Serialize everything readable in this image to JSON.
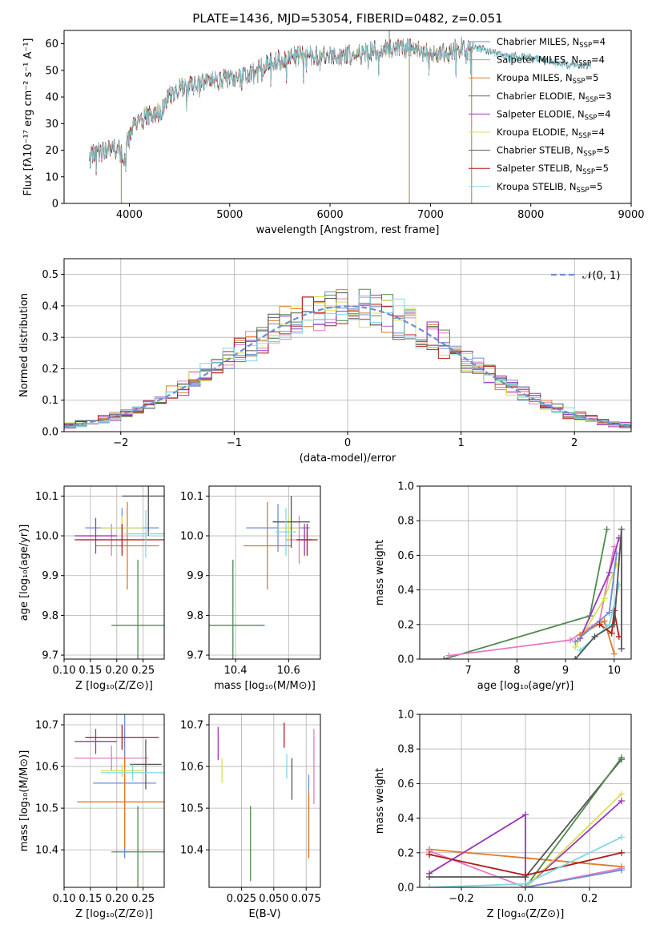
{
  "colors": {
    "Chabrier MILES": "#6b8ed6",
    "Salpeter MILES": "#e57ac0",
    "Kroupa MILES": "#e07b27",
    "Chabrier ELODIE": "#4f8a4f",
    "Salpeter ELODIE": "#9a36b8",
    "Kroupa ELODIE": "#d4e157",
    "Chabrier STELIB": "#555555",
    "Salpeter STELIB": "#b31b1b",
    "Kroupa STELIB": "#7fd9e3"
  },
  "chart_data": [
    {
      "id": "spectrum",
      "type": "line",
      "title": "PLATE=1436, MJD=53054, FIBERID=0482, z=0.051",
      "xlabel": "wavelength [Angstrom, rest frame]",
      "ylabel": "Flux [fλ10⁻¹⁷ erg cm⁻² s⁻¹ A⁻¹]",
      "xlim": [
        3350,
        9000
      ],
      "ylim": [
        0,
        65
      ],
      "xticks": [
        "4000",
        "5000",
        "6000",
        "7000",
        "8000",
        "9000"
      ],
      "yticks": [
        "0",
        "10",
        "20",
        "30",
        "40",
        "50",
        "60"
      ],
      "legend_position": "top-right",
      "legend": [
        "Chabrier MILES, N_SSP=4",
        "Salpeter MILES, N_SSP=4",
        "Kroupa MILES, N_SSP=5",
        "Chabrier ELODIE, N_SSP=3",
        "Salpeter ELODIE, N_SSP=4",
        "Kroupa ELODIE, N_SSP=4",
        "Chabrier STELIB, N_SSP=5",
        "Salpeter STELIB, N_SSP=5",
        "Kroupa STELIB, N_SSP=5"
      ],
      "series_names": [
        "Chabrier MILES",
        "Salpeter MILES",
        "Kroupa MILES",
        "Chabrier ELODIE",
        "Salpeter ELODIE",
        "Kroupa ELODIE",
        "Chabrier STELIB",
        "Salpeter STELIB",
        "Kroupa STELIB"
      ],
      "continuum": [
        [
          3600,
          18
        ],
        [
          3700,
          19
        ],
        [
          3800,
          21
        ],
        [
          3900,
          20
        ],
        [
          3950,
          16
        ],
        [
          4000,
          27
        ],
        [
          4100,
          31
        ],
        [
          4200,
          33
        ],
        [
          4300,
          34
        ],
        [
          4400,
          40
        ],
        [
          4500,
          43
        ],
        [
          4700,
          45
        ],
        [
          4900,
          46
        ],
        [
          5000,
          47
        ],
        [
          5200,
          48
        ],
        [
          5250,
          50
        ],
        [
          5400,
          53
        ],
        [
          5600,
          55
        ],
        [
          5800,
          56
        ],
        [
          6000,
          55
        ],
        [
          6200,
          56
        ],
        [
          6400,
          57
        ],
        [
          6563,
          58
        ],
        [
          6700,
          59
        ],
        [
          6900,
          57
        ],
        [
          7100,
          56
        ],
        [
          7300,
          59
        ],
        [
          7420,
          59
        ]
      ],
      "stelib_extension": [
        [
          7420,
          59
        ],
        [
          7500,
          58
        ],
        [
          7600,
          57
        ],
        [
          7800,
          55
        ],
        [
          8000,
          55
        ],
        [
          8200,
          53
        ],
        [
          8400,
          52
        ],
        [
          8600,
          52
        ]
      ],
      "spikes_down": [
        [
          3920,
          0
        ],
        [
          6790,
          0
        ],
        [
          7410,
          0
        ]
      ],
      "spike_up": [
        6590,
        65
      ]
    },
    {
      "id": "residuals",
      "type": "histogram",
      "xlabel": "(data-model)/error",
      "ylabel": "Normed distribution",
      "xlim": [
        -2.5,
        2.5
      ],
      "ylim": [
        0,
        0.55
      ],
      "xticks": [
        "−2",
        "−1",
        "0",
        "1",
        "2"
      ],
      "yticks": [
        "0.0",
        "0.1",
        "0.2",
        "0.3",
        "0.4",
        "0.5"
      ],
      "bin_width": 0.1,
      "gaussian_label": "𝒩(0, 1)",
      "gaussian_color": "#6b8ed6",
      "legend_position": "top-right"
    },
    {
      "id": "age_vs_Z",
      "type": "errorbar",
      "xlabel": "Z [log₁₀(Z/Z⊙)]",
      "ylabel": "age  [log₁₀(age/yr)]",
      "xlim": [
        0.1,
        0.29
      ],
      "ylim": [
        9.69,
        10.125
      ],
      "xticks": [
        "0.10",
        "0.15",
        "0.20",
        "0.25"
      ],
      "yticks": [
        "9.7",
        "9.8",
        "9.9",
        "10.0",
        "10.1"
      ],
      "points": [
        {
          "model": "Chabrier MILES",
          "x": 0.21,
          "xerr": 0.07,
          "y": 10.02,
          "yerr": 0.05
        },
        {
          "model": "Salpeter MILES",
          "x": 0.19,
          "xerr": 0.06,
          "y": 9.99,
          "yerr": 0.04
        },
        {
          "model": "Kroupa MILES",
          "x": 0.22,
          "xerr": 0.06,
          "y": 9.975,
          "yerr": 0.11
        },
        {
          "model": "Chabrier ELODIE",
          "x": 0.24,
          "xerr": 0.05,
          "y": 9.775,
          "yerr": 0.165
        },
        {
          "model": "Salpeter ELODIE",
          "x": 0.16,
          "xerr": 0.04,
          "y": 10.0,
          "yerr": 0.045
        },
        {
          "model": "Kroupa ELODIE",
          "x": 0.21,
          "xerr": 0.04,
          "y": 10.02,
          "yerr": 0.03
        },
        {
          "model": "Chabrier STELIB",
          "x": 0.26,
          "xerr": 0.05,
          "y": 10.1,
          "yerr": 0.1
        },
        {
          "model": "Salpeter STELIB",
          "x": 0.21,
          "xerr": 0.09,
          "y": 9.99,
          "yerr": 0.04
        },
        {
          "model": "Kroupa STELIB",
          "x": 0.255,
          "xerr": 0.04,
          "y": 10.005,
          "yerr": 0.06
        }
      ]
    },
    {
      "id": "age_vs_mass",
      "type": "errorbar",
      "xlabel": "mass [log₁₀(M/M⊙)]",
      "ylabel": "",
      "xlim": [
        10.3,
        10.72
      ],
      "ylim": [
        9.69,
        10.125
      ],
      "xticks": [
        "10.4",
        "10.6"
      ],
      "yticks": [
        "9.7",
        "9.8",
        "9.9",
        "10.0",
        "10.1"
      ],
      "points": [
        {
          "model": "Chabrier MILES",
          "x": 10.56,
          "xerr": 0.12,
          "y": 10.02,
          "yerr": 0.06
        },
        {
          "model": "Salpeter MILES",
          "x": 10.64,
          "xerr": 0.05,
          "y": 9.99,
          "yerr": 0.06
        },
        {
          "model": "Kroupa MILES",
          "x": 10.52,
          "xerr": 0.09,
          "y": 9.975,
          "yerr": 0.11
        },
        {
          "model": "Chabrier ELODIE",
          "x": 10.39,
          "xerr": 0.12,
          "y": 9.775,
          "yerr": 0.165
        },
        {
          "model": "Salpeter ELODIE",
          "x": 10.66,
          "xerr": 0.03,
          "y": 9.99,
          "yerr": 0.04
        },
        {
          "model": "Kroupa ELODIE",
          "x": 10.6,
          "xerr": 0.04,
          "y": 10.02,
          "yerr": 0.03
        },
        {
          "model": "Chabrier STELIB",
          "x": 10.61,
          "xerr": 0.07,
          "y": 10.035,
          "yerr": 0.065
        },
        {
          "model": "Salpeter STELIB",
          "x": 10.67,
          "xerr": 0.04,
          "y": 9.99,
          "yerr": 0.04
        },
        {
          "model": "Kroupa STELIB",
          "x": 10.59,
          "xerr": 0.04,
          "y": 10.01,
          "yerr": 0.06
        }
      ]
    },
    {
      "id": "massweight_vs_age",
      "type": "line",
      "xlabel": "age  [log₁₀(age/yr)]",
      "ylabel": "mass weight",
      "xlim": [
        6.0,
        10.35
      ],
      "ylim": [
        0,
        1.0
      ],
      "xticks": [
        "7",
        "8",
        "9",
        "10"
      ],
      "yticks": [
        "0.0",
        "0.2",
        "0.4",
        "0.6",
        "0.8",
        "1.0"
      ],
      "series": [
        {
          "name": "Chabrier ELODIE",
          "points": [
            [
              6.5,
              0
            ],
            [
              9.5,
              0.25
            ],
            [
              9.85,
              0.75
            ]
          ]
        },
        {
          "name": "Salpeter MILES",
          "points": [
            [
              6.6,
              0.02
            ],
            [
              9.1,
              0.11
            ],
            [
              9.7,
              0.22
            ],
            [
              10.0,
              0.65
            ]
          ]
        },
        {
          "name": "Kroupa ELODIE",
          "points": [
            [
              9.2,
              0.07
            ],
            [
              9.8,
              0.35
            ],
            [
              10.05,
              0.55
            ]
          ]
        },
        {
          "name": "Salpeter ELODIE",
          "points": [
            [
              9.3,
              0.12
            ],
            [
              9.9,
              0.5
            ],
            [
              10.1,
              0.7
            ]
          ]
        },
        {
          "name": "Kroupa MILES",
          "points": [
            [
              9.3,
              0.14
            ],
            [
              9.8,
              0.22
            ],
            [
              10.0,
              0.03
            ]
          ]
        },
        {
          "name": "Chabrier MILES",
          "points": [
            [
              9.2,
              0.1
            ],
            [
              9.9,
              0.27
            ],
            [
              10.05,
              0.61
            ]
          ]
        },
        {
          "name": "Salpeter STELIB",
          "points": [
            [
              9.7,
              0.2
            ],
            [
              9.95,
              0.15
            ],
            [
              10.0,
              0.28
            ],
            [
              10.1,
              0.13
            ]
          ]
        },
        {
          "name": "Kroupa STELIB",
          "points": [
            [
              9.3,
              0.05
            ],
            [
              9.9,
              0.2
            ],
            [
              10.1,
              0.43
            ]
          ]
        },
        {
          "name": "Chabrier STELIB",
          "points": [
            [
              9.2,
              0.0
            ],
            [
              9.6,
              0.13
            ],
            [
              10.0,
              0.2
            ],
            [
              10.15,
              0.75
            ],
            [
              10.15,
              0.06
            ]
          ]
        }
      ]
    },
    {
      "id": "mass_vs_Z",
      "type": "errorbar",
      "xlabel": "Z [log₁₀(Z/Z⊙)]",
      "ylabel": "mass [log₁₀(M/M⊙)]",
      "xlim": [
        0.1,
        0.29
      ],
      "ylim": [
        10.31,
        10.725
      ],
      "xticks": [
        "0.10",
        "0.15",
        "0.20",
        "0.25"
      ],
      "yticks": [
        "10.4",
        "10.5",
        "10.6",
        "10.7"
      ],
      "points": [
        {
          "model": "Chabrier MILES",
          "x": 0.215,
          "xerr": 0.06,
          "y": 10.56,
          "yerr": 0.18
        },
        {
          "model": "Salpeter MILES",
          "x": 0.19,
          "xerr": 0.07,
          "y": 10.62,
          "yerr": 0.03
        },
        {
          "model": "Kroupa MILES",
          "x": 0.215,
          "xerr": 0.09,
          "y": 10.515,
          "yerr": 0.11
        },
        {
          "model": "Chabrier ELODIE",
          "x": 0.24,
          "xerr": 0.05,
          "y": 10.395,
          "yerr": 0.11
        },
        {
          "model": "Salpeter ELODIE",
          "x": 0.16,
          "xerr": 0.04,
          "y": 10.66,
          "yerr": 0.03
        },
        {
          "model": "Kroupa ELODIE",
          "x": 0.21,
          "xerr": 0.04,
          "y": 10.59,
          "yerr": 0.015
        },
        {
          "model": "Chabrier STELIB",
          "x": 0.255,
          "xerr": 0.03,
          "y": 10.605,
          "yerr": 0.06
        },
        {
          "model": "Salpeter STELIB",
          "x": 0.21,
          "xerr": 0.07,
          "y": 10.67,
          "yerr": 0.03
        },
        {
          "model": "Kroupa STELIB",
          "x": 0.23,
          "xerr": 0.06,
          "y": 10.585,
          "yerr": 0.02
        }
      ]
    },
    {
      "id": "mass_vs_ebv",
      "type": "errorbar",
      "xlabel": "E(B-V)",
      "ylabel": "",
      "xlim": [
        0.0,
        0.086
      ],
      "ylim": [
        10.31,
        10.725
      ],
      "xticks": [
        "0.025",
        "0.050",
        "0.075"
      ],
      "yticks": [
        "10.4",
        "10.5",
        "10.6",
        "10.7"
      ],
      "points": [
        {
          "model": "Chabrier MILES",
          "x": 0.077,
          "xerr": 0.0,
          "y": 10.48,
          "yerr": 0.1
        },
        {
          "model": "Salpeter MILES",
          "x": 0.081,
          "xerr": 0.0,
          "y": 10.6,
          "yerr": 0.09
        },
        {
          "model": "Kroupa MILES",
          "x": 0.077,
          "xerr": 0.0,
          "y": 10.46,
          "yerr": 0.08
        },
        {
          "model": "Chabrier ELODIE",
          "x": 0.032,
          "xerr": 0.0,
          "y": 10.415,
          "yerr": 0.09
        },
        {
          "model": "Salpeter ELODIE",
          "x": 0.007,
          "xerr": 0.0,
          "y": 10.655,
          "yerr": 0.04
        },
        {
          "model": "Kroupa ELODIE",
          "x": 0.01,
          "xerr": 0.0,
          "y": 10.59,
          "yerr": 0.03
        },
        {
          "model": "Chabrier STELIB",
          "x": 0.064,
          "xerr": 0.0,
          "y": 10.57,
          "yerr": 0.05
        },
        {
          "model": "Salpeter STELIB",
          "x": 0.058,
          "xerr": 0.0,
          "y": 10.675,
          "yerr": 0.03
        },
        {
          "model": "Kroupa STELIB",
          "x": 0.06,
          "xerr": 0.0,
          "y": 10.6,
          "yerr": 0.03
        }
      ]
    },
    {
      "id": "massweight_vs_Z",
      "type": "line",
      "xlabel": "Z [log₁₀(Z/Z⊙)]",
      "ylabel": "mass weight",
      "xlim": [
        -0.33,
        0.33
      ],
      "ylim": [
        0,
        1.0
      ],
      "xticks": [
        "−0.2",
        "0.0",
        "0.2"
      ],
      "yticks": [
        "0.0",
        "0.2",
        "0.4",
        "0.6",
        "0.8",
        "1.0"
      ],
      "series": [
        {
          "name": "Kroupa MILES",
          "points": [
            [
              -0.3,
              0.22
            ],
            [
              0.0,
              0.17
            ],
            [
              0.3,
              0.12
            ]
          ]
        },
        {
          "name": "Salpeter ELODIE",
          "points": [
            [
              -0.3,
              0.08
            ],
            [
              0.0,
              0.42
            ],
            [
              0.0,
              0.0
            ],
            [
              0.3,
              0.5
            ]
          ]
        },
        {
          "name": "Salpeter MILES",
          "points": [
            [
              -0.3,
              0.21
            ],
            [
              0.0,
              0.0
            ],
            [
              0.3,
              0.11
            ]
          ]
        },
        {
          "name": "Chabrier STELIB",
          "points": [
            [
              -0.3,
              0.06
            ],
            [
              0.0,
              0.06
            ],
            [
              0.3,
              0.74
            ]
          ]
        },
        {
          "name": "Chabrier ELODIE",
          "points": [
            [
              0.0,
              0.0
            ],
            [
              0.3,
              0.75
            ]
          ]
        },
        {
          "name": "Kroupa ELODIE",
          "points": [
            [
              0.0,
              0.0
            ],
            [
              0.3,
              0.54
            ]
          ]
        },
        {
          "name": "Salpeter STELIB",
          "points": [
            [
              -0.3,
              0.19
            ],
            [
              0.0,
              0.07
            ],
            [
              0.3,
              0.2
            ]
          ]
        },
        {
          "name": "Kroupa STELIB",
          "points": [
            [
              -0.3,
              0.0
            ],
            [
              0.0,
              0.02
            ],
            [
              0.3,
              0.29
            ]
          ]
        },
        {
          "name": "Chabrier MILES",
          "points": [
            [
              0.0,
              0.0
            ],
            [
              0.3,
              0.1
            ]
          ]
        }
      ]
    }
  ]
}
